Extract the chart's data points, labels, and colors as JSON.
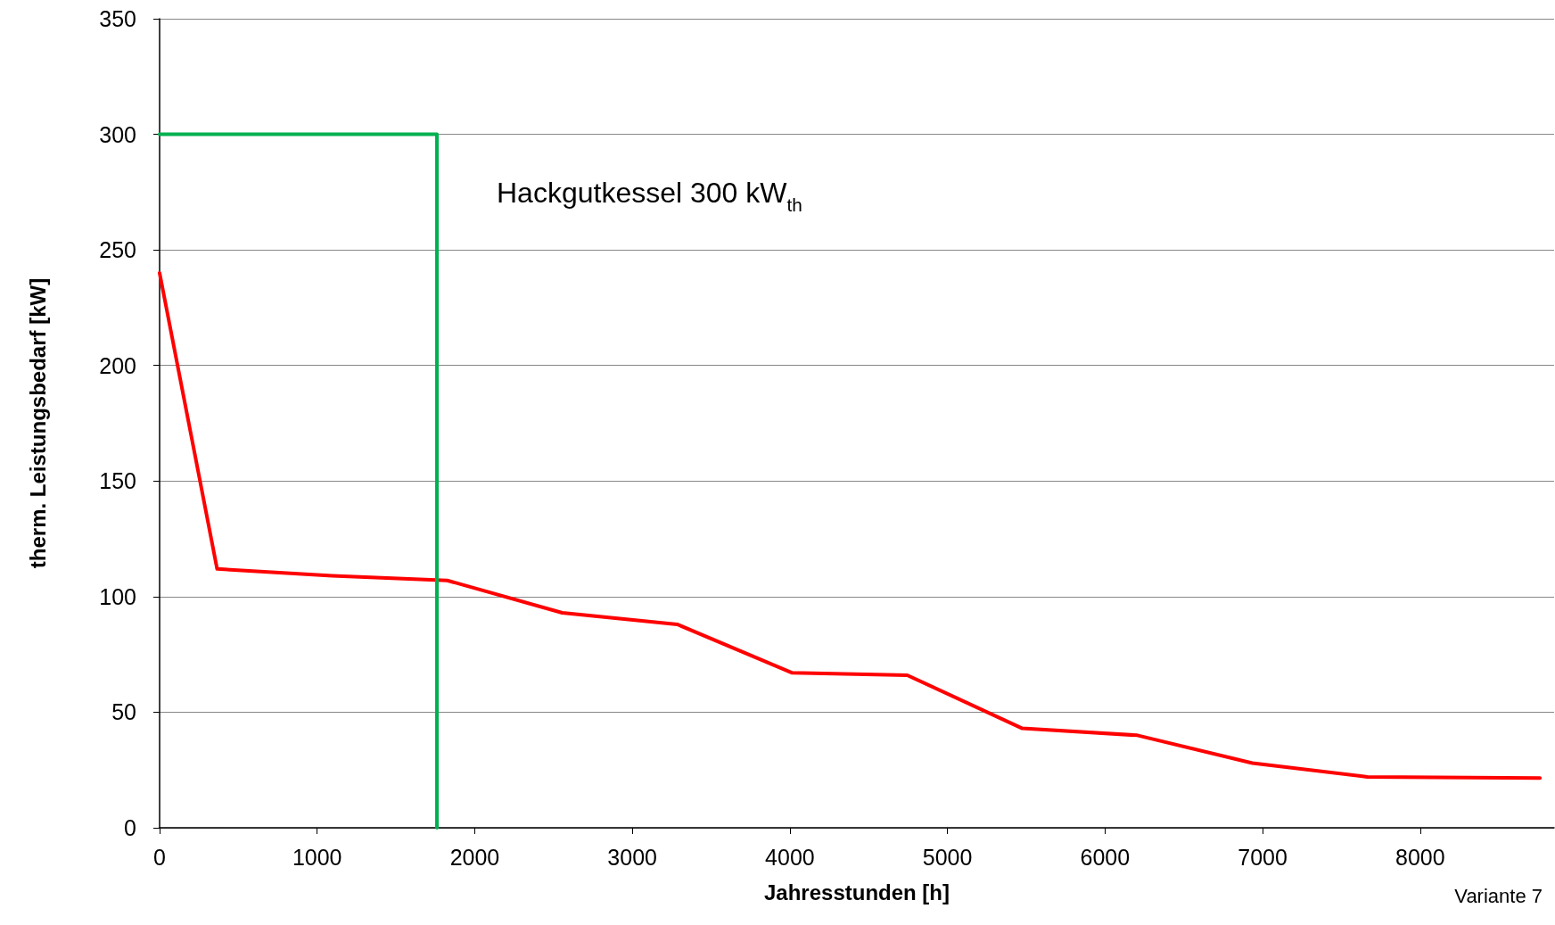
{
  "chart_data": {
    "type": "line",
    "xlabel": "Jahresstunden [h]",
    "ylabel": "therm. Leistungsbedarf [kW]",
    "xlim": [
      0,
      8850
    ],
    "xticks": [
      0,
      1000,
      2000,
      3000,
      4000,
      5000,
      6000,
      7000,
      8000
    ],
    "ylim": [
      0,
      350
    ],
    "yticks": [
      0,
      50,
      100,
      150,
      200,
      250,
      300,
      350
    ],
    "grid": "y",
    "marker": "none",
    "line_style": "solid",
    "series": [
      {
        "color": "#ff0000",
        "x": [
          0,
          365,
          1095,
          1825,
          2555,
          3285,
          4015,
          4745,
          5475,
          6205,
          6935,
          7665,
          8760
        ],
        "values": [
          240,
          112,
          109,
          107,
          93,
          88,
          67,
          66,
          43,
          40,
          28,
          22,
          21.5
        ]
      },
      {
        "color": "#00b050",
        "x": [
          0,
          1760,
          1760
        ],
        "values": [
          300,
          300,
          0
        ]
      }
    ],
    "annotations": [
      "Hackgutkessel 300 kW$_{th}$",
      "Variante 7"
    ]
  }
}
